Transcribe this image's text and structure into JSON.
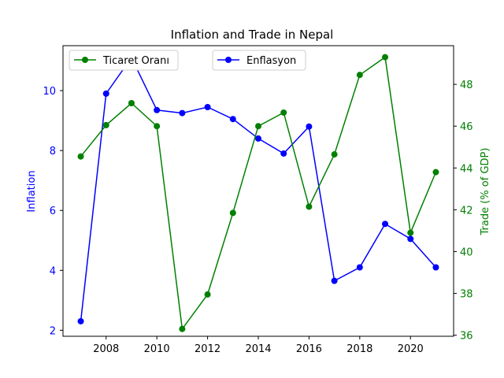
{
  "chart_data": {
    "type": "line",
    "title": "Inflation and Trade in Nepal",
    "xlabel": "",
    "x": [
      2007,
      2008,
      2009,
      2010,
      2011,
      2012,
      2013,
      2014,
      2015,
      2016,
      2017,
      2018,
      2019,
      2020,
      2021
    ],
    "x_ticks": [
      2008,
      2010,
      2012,
      2014,
      2016,
      2018,
      2020
    ],
    "xlim": [
      2006.3,
      2021.7
    ],
    "left_axis": {
      "label": "Inflation",
      "color": "#0000ff",
      "ylim": [
        1.8,
        11.5
      ],
      "ticks": [
        2,
        4,
        6,
        8,
        10
      ]
    },
    "right_axis": {
      "label": "Trade (% of GDP)",
      "color": "#008000",
      "ylim": [
        35.95,
        49.85
      ],
      "ticks": [
        36,
        38,
        40,
        42,
        44,
        46,
        48
      ]
    },
    "series": [
      {
        "name": "Enflasyon",
        "axis": "left",
        "color": "#0000ff",
        "values": [
          2.3,
          9.9,
          11.1,
          9.35,
          9.25,
          9.45,
          9.05,
          8.4,
          7.9,
          8.8,
          3.65,
          4.1,
          5.55,
          5.05,
          4.1
        ]
      },
      {
        "name": "Ticaret Oranı",
        "axis": "right",
        "color": "#008000",
        "values": [
          44.55,
          46.05,
          47.1,
          46.0,
          36.3,
          37.95,
          41.85,
          46.0,
          46.65,
          42.15,
          44.65,
          48.45,
          49.3,
          40.9,
          43.8
        ]
      }
    ],
    "legend": [
      {
        "label": "Ticaret Oranı",
        "position": "upper-left"
      },
      {
        "label": "Enflasyon",
        "position": "upper-center"
      }
    ],
    "grid": false
  }
}
